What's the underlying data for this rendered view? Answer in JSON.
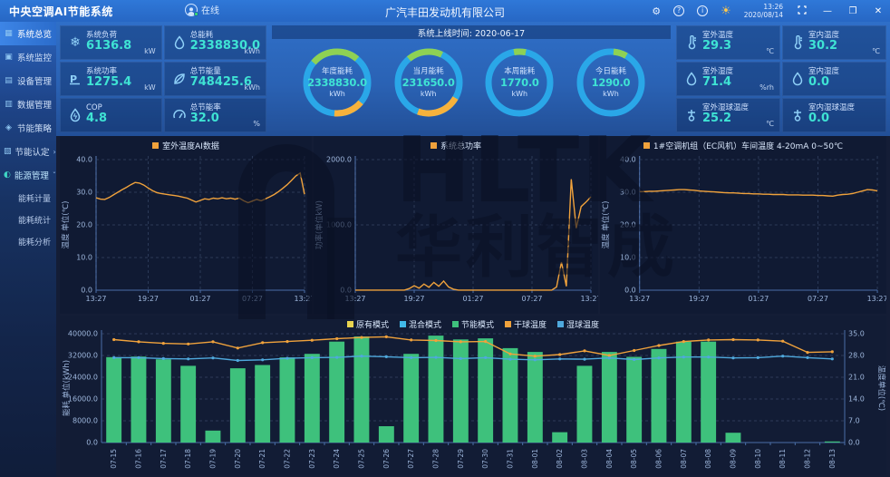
{
  "header": {
    "app_title": "中央空调AI节能系统",
    "online_label": "在线",
    "company": "广汽丰田发动机有限公司",
    "help_label": "?",
    "info_label": "i",
    "time": "13:26",
    "date": "2020/08/14",
    "minimize_label": "—",
    "maximize_label": "❐",
    "close_label": "✕"
  },
  "sidebar": {
    "items": [
      {
        "label": "系统总览"
      },
      {
        "label": "系统监控"
      },
      {
        "label": "设备管理"
      },
      {
        "label": "数据管理"
      },
      {
        "label": "节能策略"
      },
      {
        "label": "节能认定",
        "arrow": "›"
      },
      {
        "label": "能源管理",
        "arrow": "ˇ"
      }
    ],
    "sub_items": [
      "能耗计量",
      "能耗统计",
      "能耗分析"
    ]
  },
  "stats_left": [
    {
      "label": "系统负荷",
      "value": "6136.8",
      "unit": "kW"
    },
    {
      "label": "总能耗",
      "value": "2338830.0",
      "unit": "kWh"
    },
    {
      "label": "系统功率",
      "value": "1275.4",
      "unit": "kW"
    },
    {
      "label": "总节能量",
      "value": "748425.6",
      "unit": "kWh"
    },
    {
      "label": "COP",
      "value": "4.8",
      "unit": ""
    },
    {
      "label": "总节能率",
      "value": "32.0",
      "unit": "%"
    }
  ],
  "stats_right": [
    {
      "label": "室外温度",
      "value": "29.3",
      "unit": "℃"
    },
    {
      "label": "室内温度",
      "value": "30.2",
      "unit": "℃"
    },
    {
      "label": "室外湿度",
      "value": "71.4",
      "unit": "%rh"
    },
    {
      "label": "室内湿度",
      "value": "0.0",
      "unit": ""
    },
    {
      "label": "室外湿球温度",
      "value": "25.2",
      "unit": "℃"
    },
    {
      "label": "室内湿球温度",
      "value": "0.0",
      "unit": ""
    }
  ],
  "online_time": "系统上线时间: 2020-06-17",
  "gauges": [
    {
      "label": "年度能耗",
      "value": "2338830.0",
      "unit": "kWh"
    },
    {
      "label": "当月能耗",
      "value": "231650.0",
      "unit": "kWh"
    },
    {
      "label": "本周能耗",
      "value": "1770.0",
      "unit": "kWh"
    },
    {
      "label": "今日能耗",
      "value": "1290.0",
      "unit": "kWh"
    }
  ],
  "watermark": {
    "line1": "HLTK",
    "line2": "华利智成"
  },
  "colors": {
    "accent_cyan": "#3fe3d4",
    "line_orange": "#f0a23c",
    "bar_green": "#3ec17c",
    "line_blue": "#4fa9dd",
    "legend_yellow": "#e9d44f",
    "legend_cyan": "#41b9e8",
    "gauge_blue": "#2aa7e8",
    "gauge_green": "#8ed154",
    "gauge_orange": "#f7b23c"
  },
  "chart_data": [
    {
      "type": "line",
      "legend": "室外温度AI数据",
      "ylabel": "温度 单位(℃)",
      "ylim": [
        0,
        40
      ],
      "yticks": [
        0,
        10,
        20,
        30,
        40
      ],
      "x_labels": [
        "13:27",
        "19:27",
        "01:27",
        "07:27",
        "13:27"
      ],
      "grid": true,
      "series": [
        {
          "name": "室外温度AI数据",
          "color": "#f0a23c",
          "values": [
            28.3,
            27.9,
            27.8,
            28.4,
            29.2,
            30.0,
            30.8,
            31.5,
            32.3,
            33.0,
            32.8,
            32.2,
            31.3,
            30.5,
            29.9,
            29.6,
            29.4,
            29.2,
            29.0,
            28.8,
            28.5,
            28.2,
            27.6,
            27.0,
            27.5,
            28.0,
            27.8,
            28.2,
            28.0,
            28.3,
            28.0,
            28.2,
            27.9,
            28.2,
            27.4,
            26.8,
            27.3,
            27.8,
            27.4,
            28.0,
            28.6,
            29.3,
            30.2,
            31.2,
            32.3,
            33.6,
            35.0,
            35.9,
            29.4
          ]
        }
      ]
    },
    {
      "type": "line",
      "legend": "系统总功率",
      "ylabel": "功率(单位kW)",
      "ylim": [
        0,
        2000
      ],
      "yticks": [
        0,
        1000,
        2000
      ],
      "x_labels": [
        "13:27",
        "19:27",
        "01:27",
        "07:27",
        "13:27"
      ],
      "grid": true,
      "series": [
        {
          "name": "系统总功率",
          "color": "#f0a23c",
          "values": [
            2,
            2,
            2,
            2,
            2,
            2,
            2,
            2,
            2,
            2,
            2,
            25,
            70,
            30,
            95,
            45,
            120,
            60,
            140,
            50,
            15,
            2,
            2,
            2,
            2,
            2,
            2,
            2,
            2,
            2,
            2,
            2,
            2,
            2,
            2,
            2,
            2,
            2,
            2,
            2,
            2,
            50,
            430,
            60,
            1700,
            950,
            1280,
            1350,
            1430
          ]
        }
      ]
    },
    {
      "type": "line",
      "legend": "1#空调机组（EC风机）车间温度 4-20mA 0~50℃",
      "ylabel": "温度 单位(℃)",
      "ylim": [
        0,
        40
      ],
      "yticks": [
        0,
        10,
        20,
        30,
        40
      ],
      "x_labels": [
        "13:27",
        "19:27",
        "01:27",
        "07:27",
        "13:27"
      ],
      "grid": true,
      "series": [
        {
          "name": "1#空调机组车间温度",
          "color": "#f0a23c",
          "values": [
            30.2,
            30.2,
            30.3,
            30.3,
            30.4,
            30.5,
            30.6,
            30.7,
            30.8,
            30.8,
            30.7,
            30.6,
            30.4,
            30.3,
            30.2,
            30.1,
            30.0,
            29.9,
            29.8,
            29.8,
            29.7,
            29.6,
            29.6,
            29.5,
            29.5,
            29.4,
            29.4,
            29.3,
            29.3,
            29.3,
            29.2,
            29.2,
            29.2,
            29.1,
            29.1,
            29.1,
            29.0,
            29.0,
            28.9,
            28.8,
            29.1,
            29.3,
            29.4,
            29.6,
            30.0,
            30.4,
            30.8,
            30.7,
            30.4
          ]
        }
      ]
    },
    {
      "type": "bar",
      "title": "",
      "ylabel_left": "能耗 单位(kWh)",
      "ylabel_right": "温度单位(℃)",
      "ylim_left": [
        0,
        40000
      ],
      "yticks_left": [
        0,
        8000,
        16000,
        24000,
        32000,
        40000
      ],
      "ylim_right": [
        0,
        35
      ],
      "yticks_right": [
        0,
        7,
        14,
        21,
        28,
        35
      ],
      "grid": true,
      "legend_position": "top",
      "legend": [
        {
          "label": "原有模式",
          "color": "#e9d44f"
        },
        {
          "label": "混合模式",
          "color": "#41b9e8"
        },
        {
          "label": "节能模式",
          "color": "#3ec17c"
        },
        {
          "label": "干球温度",
          "color": "#f0a23c"
        },
        {
          "label": "湿球温度",
          "color": "#4fa9dd"
        }
      ],
      "categories": [
        "07-15",
        "07-16",
        "07-17",
        "07-18",
        "07-19",
        "07-20",
        "07-21",
        "07-22",
        "07-23",
        "07-24",
        "07-25",
        "07-26",
        "07-27",
        "07-28",
        "07-29",
        "07-30",
        "07-31",
        "08-01",
        "08-02",
        "08-03",
        "08-04",
        "08-05",
        "08-06",
        "08-07",
        "08-08",
        "08-09",
        "08-10",
        "08-11",
        "08-12",
        "08-13"
      ],
      "bar_series": [
        {
          "name": "原有模式",
          "color": "#e9d44f",
          "values": [
            0,
            0,
            0,
            0,
            0,
            0,
            0,
            0,
            0,
            0,
            0,
            0,
            0,
            0,
            0,
            0,
            0,
            0,
            0,
            0,
            0,
            0,
            0,
            0,
            0,
            0,
            0,
            0,
            0,
            0
          ]
        },
        {
          "name": "混合模式",
          "color": "#41b9e8",
          "values": [
            0,
            0,
            0,
            0,
            0,
            0,
            0,
            0,
            0,
            0,
            0,
            0,
            0,
            0,
            0,
            0,
            0,
            0,
            0,
            0,
            0,
            0,
            0,
            0,
            0,
            0,
            0,
            0,
            0,
            0
          ]
        },
        {
          "name": "节能模式",
          "color": "#3ec17c",
          "values": [
            31400,
            31600,
            30600,
            28200,
            4400,
            27300,
            28500,
            31300,
            32600,
            37100,
            39000,
            6000,
            32600,
            39300,
            37900,
            38300,
            34700,
            33300,
            3800,
            28200,
            33300,
            31500,
            34400,
            37100,
            37100,
            3600,
            0,
            0,
            0,
            400
          ]
        }
      ],
      "line_series": [
        {
          "name": "干球温度",
          "color": "#f0a23c",
          "axis": "right",
          "values": [
            33.1,
            32.4,
            31.9,
            31.7,
            32.4,
            30.4,
            32.1,
            32.5,
            32.9,
            33.4,
            33.8,
            34.0,
            33.0,
            32.8,
            32.4,
            32.5,
            28.5,
            27.8,
            28.3,
            29.5,
            28.0,
            29.6,
            31.2,
            32.5,
            33.0,
            33.1,
            33.0,
            32.6,
            29.0,
            29.2
          ]
        },
        {
          "name": "湿球温度",
          "color": "#4fa9dd",
          "axis": "right",
          "values": [
            27.3,
            27.3,
            27.0,
            26.9,
            27.2,
            26.4,
            26.6,
            27.1,
            27.3,
            27.4,
            27.8,
            27.6,
            27.3,
            27.4,
            27.0,
            27.3,
            26.8,
            26.6,
            26.9,
            26.8,
            27.2,
            26.7,
            27.2,
            27.5,
            27.5,
            27.2,
            27.3,
            27.8,
            27.3,
            26.9
          ]
        }
      ]
    }
  ]
}
